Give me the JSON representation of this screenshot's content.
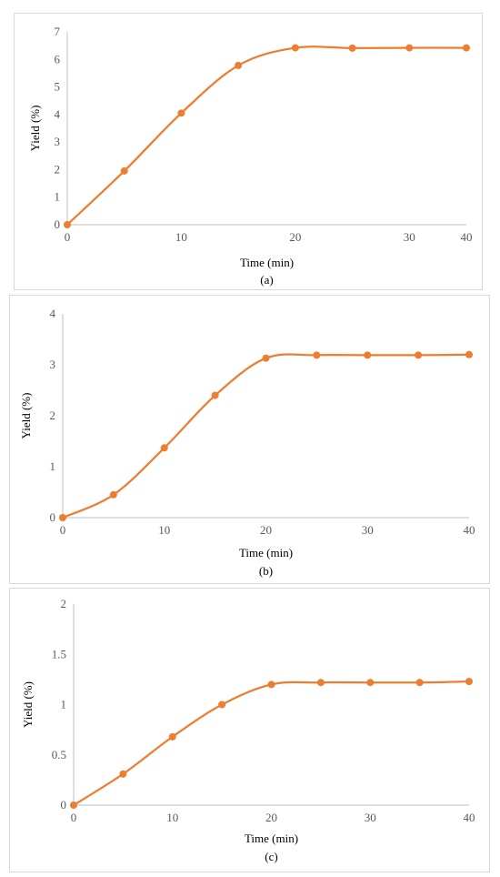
{
  "chart_data": [
    {
      "type": "line",
      "panel_label": "(a)",
      "xlabel": "Time (min)",
      "ylabel": "Yield (%)",
      "categories": [
        "0",
        "10",
        "20",
        "30",
        "40"
      ],
      "x": [
        0,
        5,
        10,
        15,
        20,
        25,
        30,
        40
      ],
      "series": [
        {
          "values": [
            0,
            1.95,
            4.05,
            5.78,
            6.42,
            6.41,
            6.42,
            6.42
          ]
        }
      ],
      "xlim": [
        0,
        40
      ],
      "ylim": [
        0,
        7
      ],
      "yticks": [
        0,
        1,
        2,
        3,
        4,
        5,
        6,
        7
      ],
      "x_axis_mode": "category",
      "color": "#ED7D31",
      "grid": false,
      "legend": "none"
    },
    {
      "type": "line",
      "panel_label": "(b)",
      "xlabel": "Time (min)",
      "ylabel": "Yield (%)",
      "xticks": [
        0,
        10,
        20,
        30,
        40
      ],
      "x": [
        0,
        5,
        10,
        15,
        20,
        25,
        30,
        35,
        40
      ],
      "series": [
        {
          "values": [
            0,
            0.45,
            1.37,
            2.4,
            3.13,
            3.19,
            3.19,
            3.19,
            3.2
          ]
        }
      ],
      "xlim": [
        0,
        40
      ],
      "ylim": [
        0,
        4
      ],
      "yticks": [
        0,
        1,
        2,
        3,
        4
      ],
      "color": "#ED7D31",
      "grid": false,
      "legend": "none"
    },
    {
      "type": "line",
      "panel_label": "(c)",
      "xlabel": "Time (min)",
      "ylabel": "Yield (%)",
      "xticks": [
        0,
        10,
        20,
        30,
        40
      ],
      "x": [
        0,
        5,
        10,
        15,
        20,
        25,
        30,
        35,
        40
      ],
      "series": [
        {
          "values": [
            0,
            0.31,
            0.68,
            1.0,
            1.2,
            1.22,
            1.22,
            1.22,
            1.23
          ]
        }
      ],
      "xlim": [
        0,
        40
      ],
      "ylim": [
        0,
        2
      ],
      "yticks": [
        0,
        0.5,
        1,
        1.5,
        2
      ],
      "color": "#ED7D31",
      "grid": false,
      "legend": "none"
    }
  ]
}
